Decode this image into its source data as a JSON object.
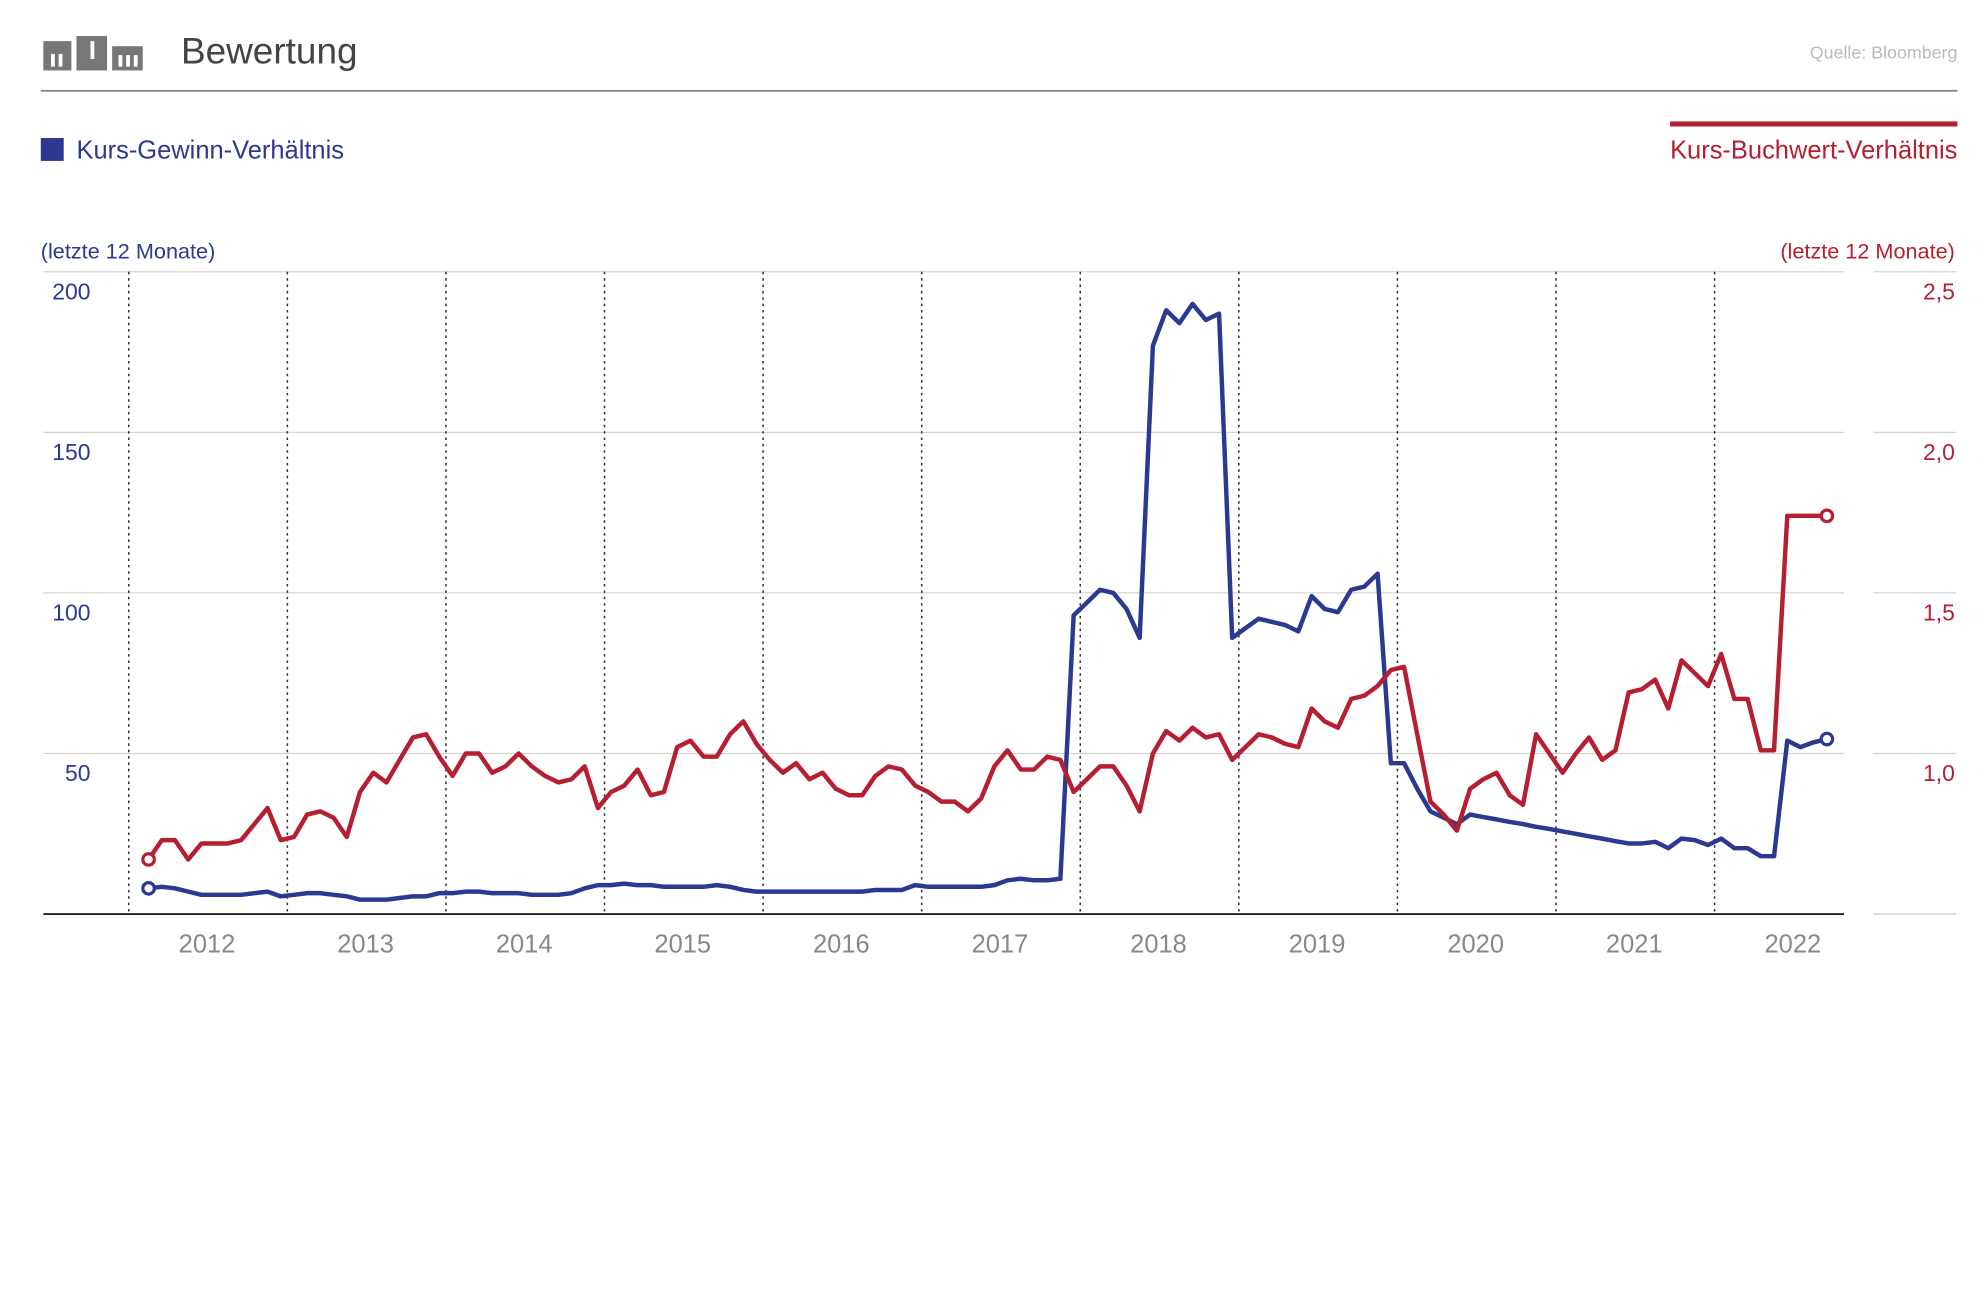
{
  "chart_data": {
    "type": "line",
    "title": "Bewertung",
    "source": "Quelle: Bloomberg",
    "y_label": "(letzte 12 Monate)",
    "y2_label": "(letzte 12 Monate)",
    "categories": [
      null,
      null,
      null,
      null,
      null,
      "2012",
      null,
      null,
      null,
      null,
      null,
      null,
      null,
      null,
      null,
      null,
      null,
      "2013",
      null,
      null,
      null,
      null,
      null,
      null,
      null,
      null,
      null,
      null,
      null,
      "2014",
      null,
      null,
      null,
      null,
      null,
      null,
      null,
      null,
      null,
      null,
      null,
      "2015",
      null,
      null,
      null,
      null,
      null,
      null,
      null,
      null,
      null,
      null,
      null,
      "2016",
      null,
      null,
      null,
      null,
      null,
      null,
      null,
      null,
      null,
      null,
      null,
      "2017",
      null,
      null,
      null,
      null,
      null,
      null,
      null,
      null,
      null,
      null,
      null,
      "2018",
      null,
      null,
      null,
      null,
      null,
      null,
      null,
      null,
      null,
      null,
      null,
      "2019",
      null,
      null,
      null,
      null,
      null,
      null,
      null,
      null,
      null,
      null,
      null,
      "2020",
      null,
      null,
      null,
      null,
      null,
      null,
      null,
      null,
      null,
      null,
      null,
      "2021",
      null,
      null,
      null,
      null,
      null,
      null,
      null,
      null,
      null,
      null,
      null,
      "2022",
      null,
      null
    ],
    "ylim": [
      0,
      200
    ],
    "yticks": [
      50,
      100,
      150,
      200
    ],
    "y2lim": [
      0.5,
      2.5
    ],
    "y2ticks": [
      {
        "value": 1.0,
        "label": "1,0"
      },
      {
        "value": 1.5,
        "label": "1,5"
      },
      {
        "value": 2.0,
        "label": "2,0"
      },
      {
        "value": 2.5,
        "label": "2,5"
      }
    ],
    "grid": true,
    "series": [
      {
        "name": "Kurs-Gewinn-Verhältnis",
        "color": "#2b3990",
        "axis": "y",
        "values": [
          8,
          8.5,
          8,
          7,
          6,
          6,
          6,
          6,
          6.5,
          7,
          5.5,
          6,
          6.5,
          6.5,
          6,
          5.5,
          4.5,
          4.5,
          4.5,
          5,
          5.5,
          5.5,
          6.5,
          6.5,
          7,
          7,
          6.5,
          6.5,
          6.5,
          6,
          6,
          6,
          6.5,
          8,
          9,
          9,
          9.5,
          9,
          9,
          8.5,
          8.5,
          8.5,
          8.5,
          9,
          8.5,
          7.5,
          7,
          7,
          7,
          7,
          7,
          7,
          7,
          7,
          7,
          7.5,
          7.5,
          7.5,
          9,
          8.5,
          8.5,
          8.5,
          8.5,
          8.5,
          9,
          10.5,
          11,
          10.5,
          10.5,
          11,
          93,
          97,
          101,
          100,
          95,
          86,
          177,
          188,
          184,
          190,
          185,
          187,
          86,
          89,
          92,
          91,
          90,
          88,
          99,
          95,
          94,
          101,
          102,
          106,
          47,
          47,
          39,
          32,
          30,
          28,
          31,
          30.2,
          29.5,
          28.7,
          28,
          27.2,
          26.5,
          25.7,
          25,
          24.2,
          23.5,
          22.7,
          22,
          22,
          22.5,
          20.5,
          23.5,
          23,
          21.5,
          23.5,
          20.5,
          20.5,
          18,
          18,
          54,
          52,
          53.5,
          54.5
        ]
      },
      {
        "name": "Kurs-Buchwert-Verhältnis",
        "color": "#b51f31",
        "axis": "y2",
        "values": [
          0.67,
          0.73,
          0.73,
          0.67,
          0.72,
          0.72,
          0.72,
          0.73,
          0.78,
          0.83,
          0.73,
          0.74,
          0.81,
          0.82,
          0.8,
          0.74,
          0.88,
          0.94,
          0.91,
          0.98,
          1.05,
          1.06,
          0.99,
          0.93,
          1.0,
          1.0,
          0.94,
          0.96,
          1.0,
          0.96,
          0.93,
          0.91,
          0.92,
          0.96,
          0.83,
          0.88,
          0.9,
          0.95,
          0.87,
          0.88,
          1.02,
          1.04,
          0.99,
          0.99,
          1.06,
          1.1,
          1.03,
          0.98,
          0.94,
          0.97,
          0.92,
          0.94,
          0.89,
          0.87,
          0.87,
          0.93,
          0.96,
          0.95,
          0.9,
          0.88,
          0.85,
          0.85,
          0.82,
          0.86,
          0.96,
          1.01,
          0.95,
          0.95,
          0.99,
          0.98,
          0.88,
          0.92,
          0.96,
          0.96,
          0.9,
          0.82,
          1.0,
          1.07,
          1.04,
          1.08,
          1.05,
          1.06,
          0.98,
          1.02,
          1.06,
          1.05,
          1.03,
          1.02,
          1.14,
          1.1,
          1.08,
          1.17,
          1.18,
          1.21,
          1.26,
          1.27,
          1.06,
          0.85,
          0.81,
          0.76,
          0.89,
          0.92,
          0.94,
          0.87,
          0.84,
          1.06,
          1.0,
          0.94,
          1.0,
          1.05,
          0.98,
          1.01,
          1.19,
          1.2,
          1.23,
          1.14,
          1.29,
          1.25,
          1.21,
          1.31,
          1.17,
          1.17,
          1.01,
          1.01,
          1.74,
          1.74,
          1.74,
          1.74
        ]
      }
    ]
  }
}
